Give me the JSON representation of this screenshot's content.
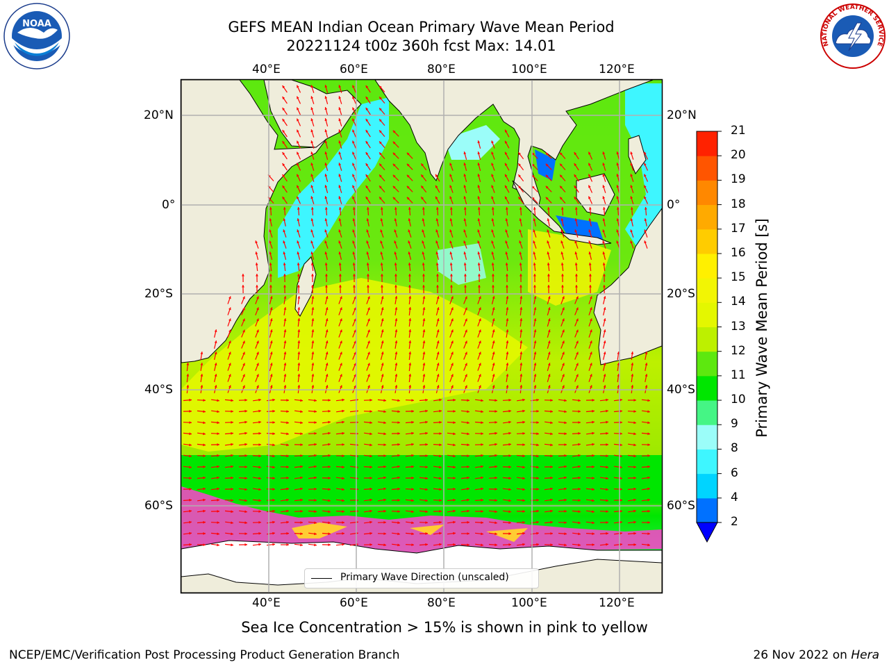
{
  "title": {
    "line1": "GEFS MEAN Indian Ocean Primary Wave Mean Period",
    "line2": "20221124 t00z 360h fcst   Max: 14.01"
  },
  "map": {
    "lon_range": [
      20,
      130
    ],
    "lat_range": [
      -75,
      27
    ],
    "lon_ticks": [
      "40°E",
      "60°E",
      "80°E",
      "100°E",
      "120°E"
    ],
    "lat_ticks": [
      "20°N",
      "0°",
      "20°S",
      "40°S",
      "60°S"
    ],
    "gridlines": true,
    "land_color": "#efeddb",
    "arrow_color": "#ff0000"
  },
  "legend": {
    "label": "Primary Wave Direction (unscaled)"
  },
  "colorbar": {
    "label": "Primary Wave Mean Period [s]",
    "ticks": [
      "2",
      "4",
      "6",
      "8",
      "9",
      "10",
      "11",
      "12",
      "13",
      "14",
      "15",
      "16",
      "17",
      "18",
      "19",
      "20",
      "21"
    ],
    "colors": [
      "#0071ff",
      "#00d4ff",
      "#3ef6ff",
      "#9bfdf9",
      "#45f585",
      "#00e600",
      "#5de80f",
      "#bdf000",
      "#e4f700",
      "#f2f504",
      "#fff000",
      "#ffcc00",
      "#ffaa00",
      "#ff8800",
      "#ff5500",
      "#ff2200"
    ],
    "extend_color": "#0000ff"
  },
  "caption": "Sea Ice Concentration > 15% is shown in pink to yellow",
  "footer": {
    "left": "NCEP/EMC/Verification Post Processing Product Generation Branch",
    "right_prefix": "26 Nov 2022 on ",
    "right_host": "Hera"
  },
  "logos": {
    "noaa_text": "NOAA",
    "nws_text": "NATIONAL WEATHER SERVICE"
  }
}
